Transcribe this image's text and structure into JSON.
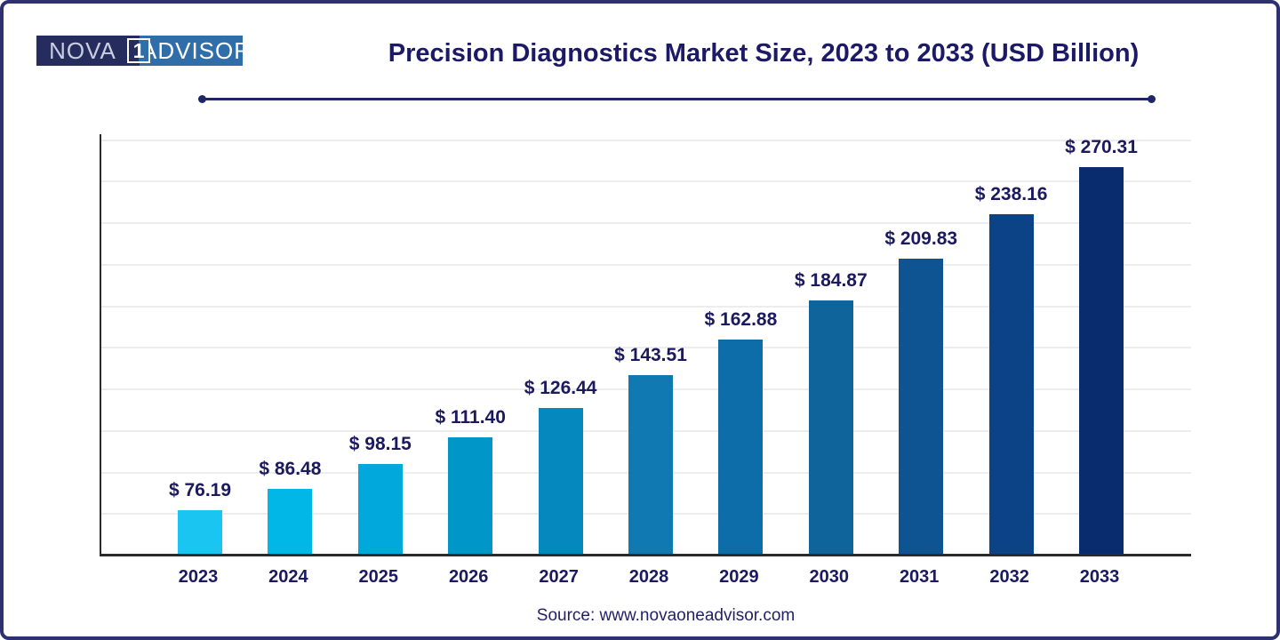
{
  "page": {
    "border_color": "#2d3170",
    "background": "#ffffff"
  },
  "logo": {
    "left_text": "NOVA",
    "one_text": "1",
    "right_text": "ADVISOR",
    "dark_color": "#272c5e",
    "blue_color": "#2f6ea9"
  },
  "header": {
    "title": "Precision Diagnostics Market Size, 2023 to 2033 (USD Billion)",
    "title_color": "#1c1966"
  },
  "chart_data": {
    "type": "bar",
    "title": "Precision Diagnostics Market Size, 2023 to 2033 (USD Billion)",
    "xlabel": "",
    "ylabel": "",
    "categories": [
      "2023",
      "2024",
      "2025",
      "2026",
      "2027",
      "2028",
      "2029",
      "2030",
      "2031",
      "2032",
      "2033"
    ],
    "values": [
      76.19,
      86.48,
      98.15,
      111.4,
      126.44,
      143.51,
      162.88,
      184.87,
      209.83,
      238.16,
      270.31
    ],
    "value_prefix": "$ ",
    "labels": [
      "$ 76.19",
      "$ 86.48",
      "$ 98.15",
      "$ 111.40",
      "$ 126.44",
      "$ 143.51",
      "$ 162.88",
      "$ 184.87",
      "$ 209.83",
      "$ 238.16",
      "$ 270.31"
    ],
    "unit": "USD Billion",
    "bar_colors": [
      "#1bc5f1",
      "#00b7e7",
      "#00a8db",
      "#0096c8",
      "#0588bd",
      "#1079b1",
      "#0c6da9",
      "#0f649c",
      "#0e5492",
      "#0c4286",
      "#092c6e"
    ],
    "grid": true,
    "gridline_color": "#ededed",
    "axis_color": "#2b2b2b",
    "label_color": "#1c1a5e",
    "legend": false,
    "y_tick_labels_visible": false,
    "ylim": [
      50,
      290
    ]
  },
  "footer": {
    "source": "Source: www.novaoneadvisor.com"
  }
}
